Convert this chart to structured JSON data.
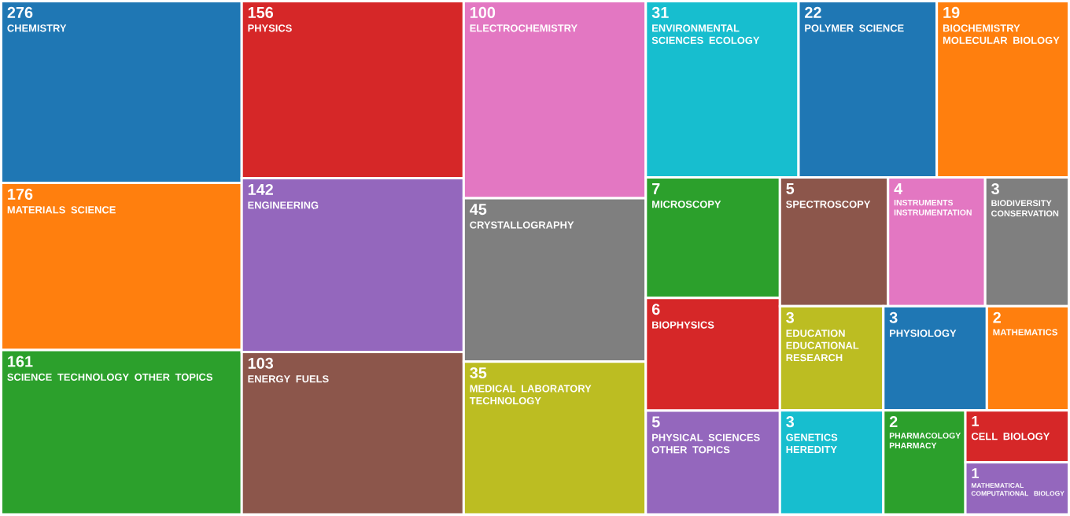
{
  "chart_data": {
    "type": "other",
    "categories": [
      "CHEMISTRY",
      "MATERIALS SCIENCE",
      "SCIENCE TECHNOLOGY OTHER TOPICS",
      "PHYSICS",
      "ENGINEERING",
      "ENERGY FUELS",
      "ELECTROCHEMISTRY",
      "CRYSTALLOGRAPHY",
      "MEDICAL LABORATORY TECHNOLOGY",
      "ENVIRONMENTAL SCIENCES ECOLOGY",
      "POLYMER SCIENCE",
      "BIOCHEMISTRY MOLECULAR BIOLOGY",
      "MICROSCOPY",
      "BIOPHYSICS",
      "PHYSICAL SCIENCES OTHER TOPICS",
      "SPECTROSCOPY",
      "INSTRUMENTS INSTRUMENTATION",
      "BIODIVERSITY CONSERVATION",
      "EDUCATION EDUCATIONAL RESEARCH",
      "GENETICS HEREDITY",
      "PHYSIOLOGY",
      "MATHEMATICS",
      "PHARMACOLOGY PHARMACY",
      "CELL BIOLOGY",
      "MATHEMATICAL COMPUTATIONAL BIOLOGY"
    ],
    "values": [
      276,
      176,
      161,
      156,
      142,
      103,
      100,
      45,
      35,
      31,
      22,
      19,
      7,
      6,
      5,
      5,
      4,
      3,
      3,
      3,
      3,
      2,
      2,
      1,
      1
    ],
    "data_labels": true,
    "colors": [
      "#1f77b4",
      "#ff7f0e",
      "#2ca02c",
      "#d62728",
      "#9467bd",
      "#8c564b",
      "#e377c2",
      "#7f7f7f",
      "#bcbd22",
      "#17becf",
      "#1f77b4",
      "#ff7f0e",
      "#2ca02c",
      "#d62728",
      "#9467bd",
      "#8c564b",
      "#e377c2",
      "#7f7f7f",
      "#bcbd22",
      "#17becf",
      "#1f77b4",
      "#ff7f0e",
      "#2ca02c",
      "#d62728",
      "#9467bd"
    ]
  }
}
